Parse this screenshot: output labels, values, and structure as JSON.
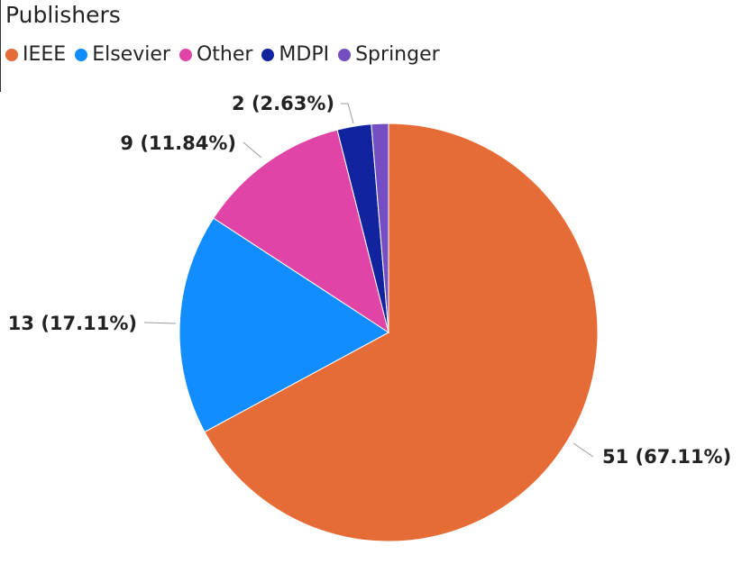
{
  "chart_data": {
    "type": "pie",
    "title": "Publishers",
    "legend_position": "top-left",
    "slices": [
      {
        "name": "IEEE",
        "value": 51,
        "percent": "67.11%",
        "color": "#E66C37",
        "label": "51 (67.11%)"
      },
      {
        "name": "Elsevier",
        "value": 13,
        "percent": "17.11%",
        "color": "#118DFF",
        "label": "13 (17.11%)"
      },
      {
        "name": "Other",
        "value": 9,
        "percent": "11.84%",
        "color": "#E044A7",
        "label": "9 (11.84%)"
      },
      {
        "name": "MDPI",
        "value": 2,
        "percent": "2.63%",
        "color": "#12239E",
        "label": "2 (2.63%)"
      },
      {
        "name": "Springer",
        "value": 1,
        "percent": "1.32%",
        "color": "#744EC2",
        "label": ""
      }
    ]
  }
}
